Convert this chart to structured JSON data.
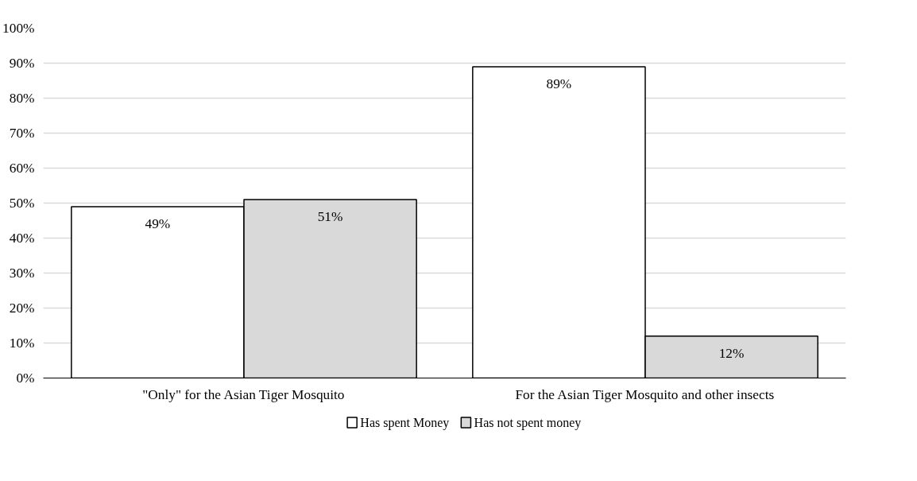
{
  "chart_data": {
    "type": "bar",
    "categories": [
      "\"Only\" for the Asian Tiger Mosquito",
      "For the Asian Tiger Mosquito and other insects"
    ],
    "series": [
      {
        "name": "Has spent Money",
        "color": "#ffffff",
        "values": [
          49,
          89
        ],
        "value_labels": [
          "49%",
          "89%"
        ]
      },
      {
        "name": "Has not spent money",
        "color": "#d9d9d9",
        "values": [
          51,
          12
        ],
        "value_labels": [
          "51%",
          "12%"
        ]
      }
    ],
    "ylim": [
      0,
      100
    ],
    "yticks": [
      {
        "value": 0,
        "label": "0%"
      },
      {
        "value": 10,
        "label": "10%"
      },
      {
        "value": 20,
        "label": "20%"
      },
      {
        "value": 30,
        "label": "30%"
      },
      {
        "value": 40,
        "label": "40%"
      },
      {
        "value": 50,
        "label": "50%"
      },
      {
        "value": 60,
        "label": "60%"
      },
      {
        "value": 70,
        "label": "70%"
      },
      {
        "value": 80,
        "label": "80%"
      },
      {
        "value": 90,
        "label": "90%"
      },
      {
        "value": 100,
        "label": "100%"
      }
    ],
    "grid": "y",
    "legend": "bottom"
  }
}
